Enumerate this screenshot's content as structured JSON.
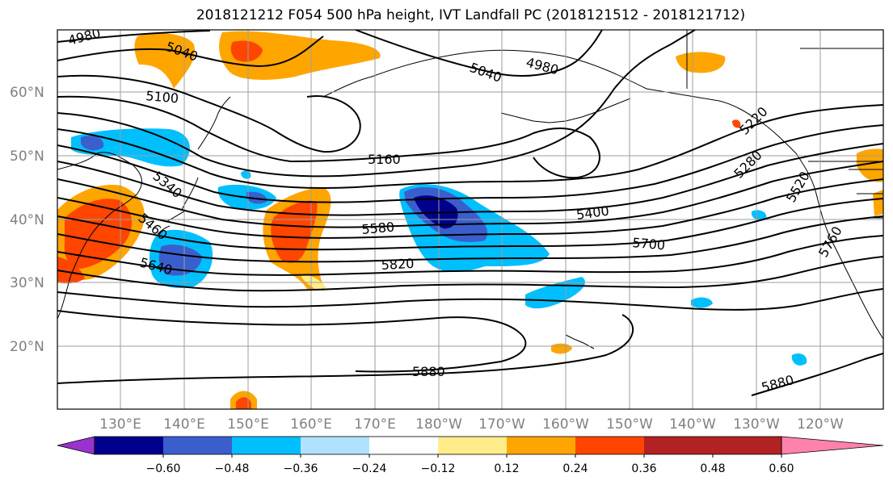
{
  "title": "2018121212 F054 500 hPa height, IVT Landfall PC (2018121512 - 2018121712)",
  "lat_labels": [
    "60°N",
    "50°N",
    "40°N",
    "30°N",
    "20°N"
  ],
  "lon_labels": [
    "130°E",
    "140°E",
    "150°E",
    "160°E",
    "170°E",
    "180°W",
    "170°W",
    "160°W",
    "150°W",
    "140°W",
    "130°W",
    "120°W"
  ],
  "contour_labels": [
    "4980",
    "5040",
    "5100",
    "5040",
    "4980",
    "5160",
    "5340",
    "5460",
    "5640",
    "5580",
    "5820",
    "5400",
    "5700",
    "5220",
    "5280",
    "5520",
    "5760",
    "5880",
    "5880"
  ],
  "colorbar": {
    "ticks": [
      "−0.60",
      "−0.48",
      "−0.36",
      "−0.24",
      "−0.12",
      "0.12",
      "0.24",
      "0.36",
      "0.48",
      "0.60"
    ],
    "colors": [
      "#9a32cd",
      "#00008b",
      "#3a5fcd",
      "#00bfff",
      "#b0e2ff",
      "#ffffff",
      "#ffec8b",
      "#ffa500",
      "#ff4500",
      "#b22222",
      "#ff82ab"
    ]
  },
  "colors": {
    "neg_strong": "#3a5fcd",
    "neg_mid": "#00bfff",
    "neg_deep": "#00008b",
    "pos_mid": "#ffa500",
    "pos_strong": "#ff4500",
    "pos_weak": "#ffec8b"
  }
}
